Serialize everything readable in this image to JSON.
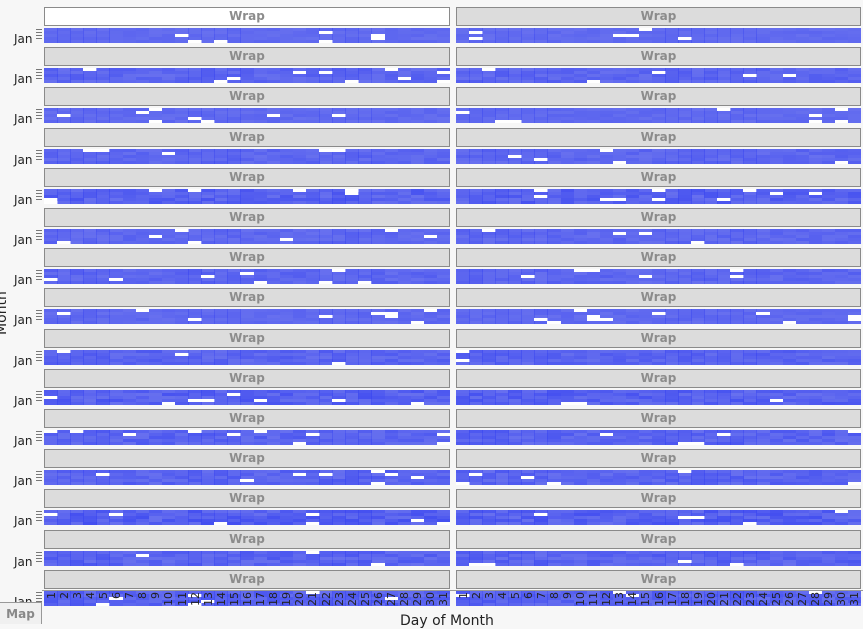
{
  "chart_data": {
    "type": "heatmap",
    "wrap_label": "Wrap",
    "ylabel": "Month",
    "xlabel": "Day of Month",
    "y_tick_label": "Jan",
    "x_categories": [
      1,
      2,
      3,
      4,
      5,
      6,
      7,
      8,
      9,
      10,
      11,
      12,
      13,
      14,
      15,
      16,
      17,
      18,
      19,
      20,
      21,
      22,
      23,
      24,
      25,
      26,
      27,
      28,
      29,
      30,
      31
    ],
    "panel_rows": 15,
    "panel_columns": 2,
    "color": "#4a55f0",
    "background_color": "#ffffff"
  },
  "footer": {
    "map_tab": "Map"
  }
}
